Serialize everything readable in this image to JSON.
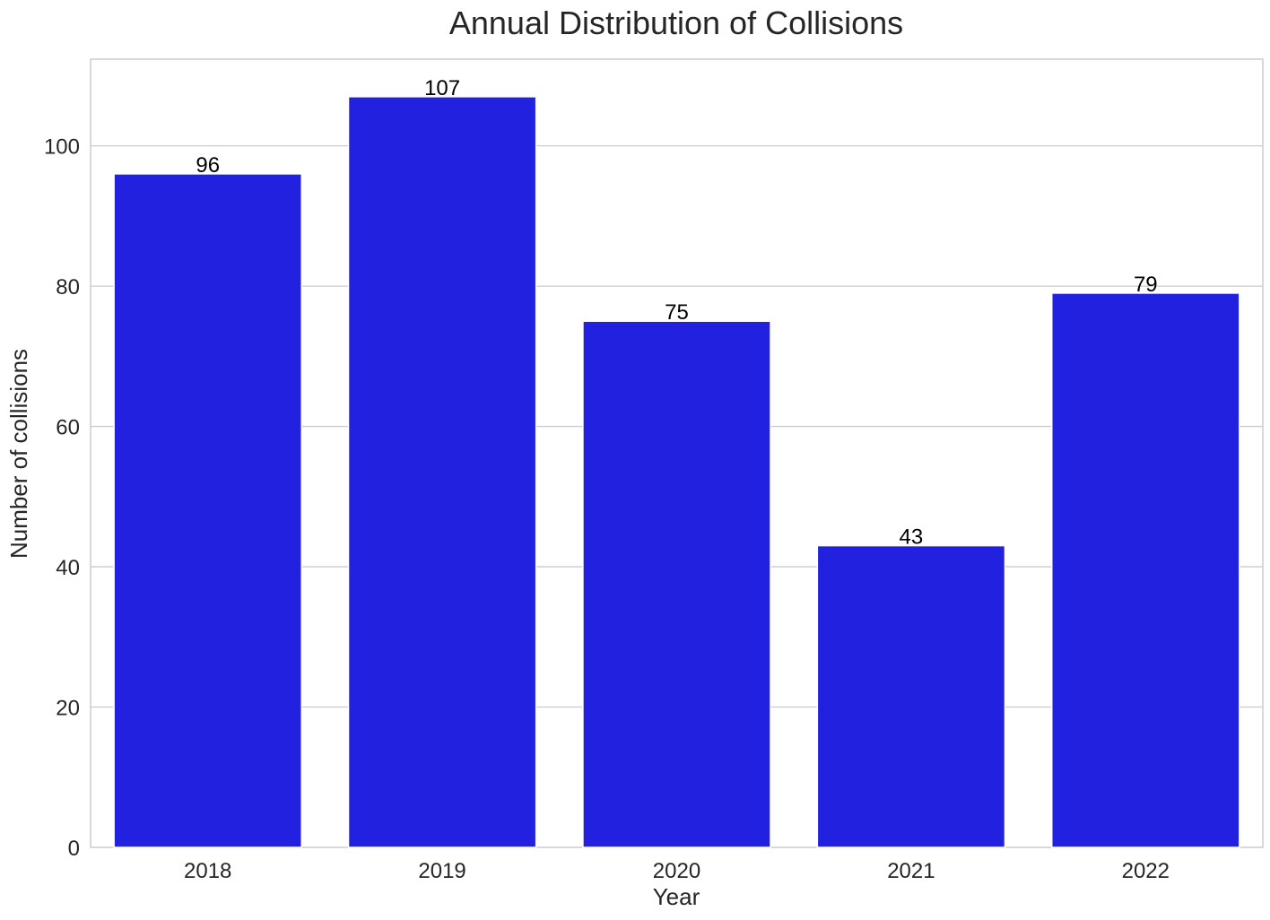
{
  "chart_data": {
    "type": "bar",
    "title": "Annual Distribution of Collisions",
    "xlabel": "Year",
    "ylabel": "Number of collisions",
    "categories": [
      "2018",
      "2019",
      "2020",
      "2021",
      "2022"
    ],
    "values": [
      96,
      107,
      75,
      43,
      79
    ],
    "data_labels": [
      "96",
      "107",
      "75",
      "43",
      "79"
    ],
    "ylim": [
      0,
      112.35
    ],
    "yticks": [
      0,
      20,
      40,
      60,
      80,
      100
    ],
    "ytick_labels": [
      "0",
      "20",
      "40",
      "60",
      "80",
      "100"
    ],
    "grid": "horizontal",
    "legend": "none",
    "bar_color": "#2121df"
  }
}
